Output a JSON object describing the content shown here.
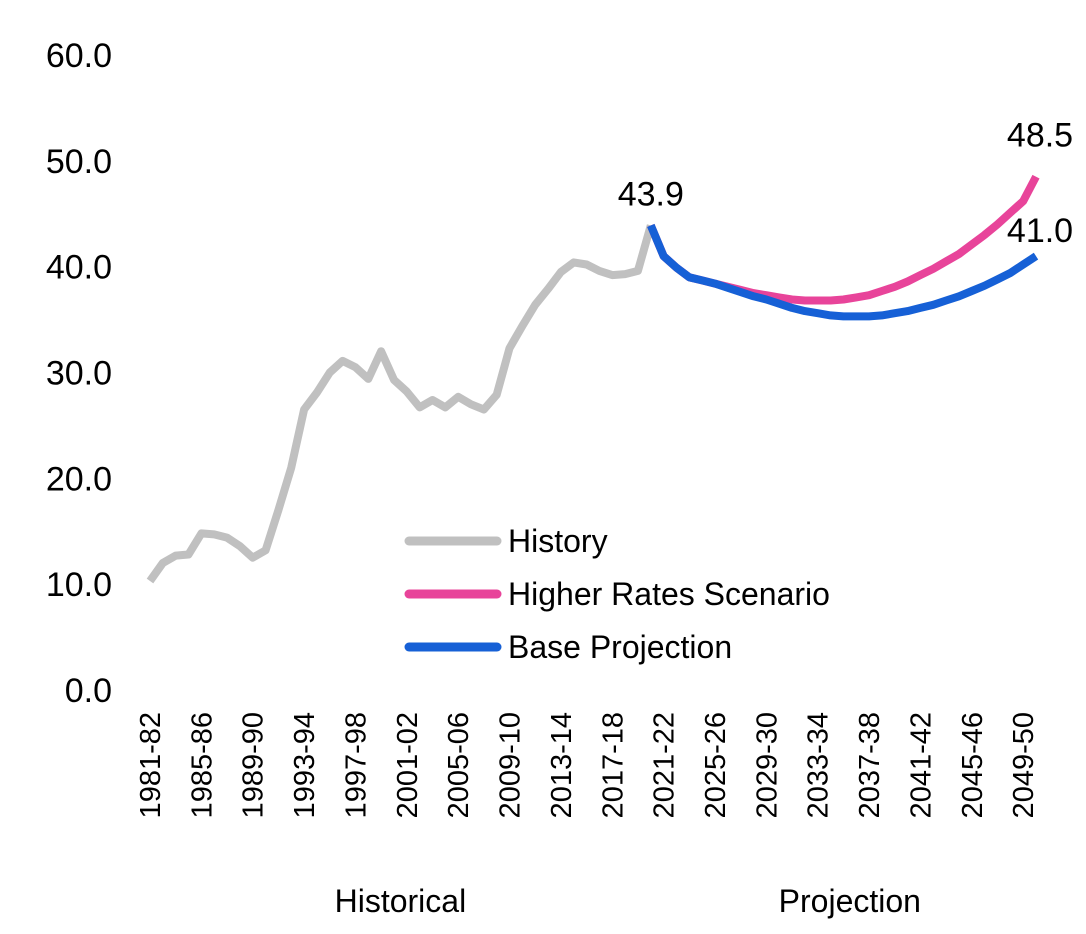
{
  "chart_data": {
    "type": "line",
    "title": "",
    "xlabel": "",
    "ylabel": "",
    "ylim": [
      0,
      60
    ],
    "y_ticks": [
      "0.0",
      "10.0",
      "20.0",
      "30.0",
      "40.0",
      "50.0",
      "60.0"
    ],
    "x_tick_labels": [
      "1981-82",
      "1985-86",
      "1989-90",
      "1993-94",
      "1997-98",
      "2001-02",
      "2005-06",
      "2009-10",
      "2013-14",
      "2017-18",
      "2021-22",
      "2025-26",
      "2029-30",
      "2033-34",
      "2037-38",
      "2041-42",
      "2045-46",
      "2049-50"
    ],
    "x_groups": [
      {
        "label": "Historical",
        "from": "1981-82",
        "to": "2020-21"
      },
      {
        "label": "Projection",
        "from": "2021-22",
        "to": "2050-51"
      }
    ],
    "grid": false,
    "legend_position": "center-bottom",
    "series": [
      {
        "name": "History",
        "color": "#C0C0C0",
        "x": [
          "1981-82",
          "1982-83",
          "1983-84",
          "1984-85",
          "1985-86",
          "1986-87",
          "1987-88",
          "1988-89",
          "1989-90",
          "1990-91",
          "1991-92",
          "1992-93",
          "1993-94",
          "1994-95",
          "1995-96",
          "1996-97",
          "1997-98",
          "1998-99",
          "1999-00",
          "2000-01",
          "2001-02",
          "2002-03",
          "2003-04",
          "2004-05",
          "2005-06",
          "2006-07",
          "2007-08",
          "2008-09",
          "2009-10",
          "2010-11",
          "2011-12",
          "2012-13",
          "2013-14",
          "2014-15",
          "2015-16",
          "2016-17",
          "2017-18",
          "2018-19",
          "2019-20",
          "2020-21"
        ],
        "values": [
          10.3,
          12.0,
          12.7,
          12.8,
          14.8,
          14.7,
          14.4,
          13.6,
          12.5,
          13.2,
          17.0,
          21.0,
          26.5,
          28.1,
          30.0,
          31.1,
          30.5,
          29.4,
          32.0,
          29.3,
          28.2,
          26.7,
          27.4,
          26.7,
          27.7,
          27.0,
          26.5,
          27.9,
          32.3,
          34.4,
          36.4,
          37.9,
          39.5,
          40.4,
          40.2,
          39.6,
          39.2,
          39.3,
          39.6,
          43.9
        ]
      },
      {
        "name": "Higher Rates Scenario",
        "color": "#E8449A",
        "x": [
          "2020-21",
          "2021-22",
          "2022-23",
          "2023-24",
          "2024-25",
          "2025-26",
          "2026-27",
          "2027-28",
          "2028-29",
          "2029-30",
          "2030-31",
          "2031-32",
          "2032-33",
          "2033-34",
          "2034-35",
          "2035-36",
          "2036-37",
          "2037-38",
          "2038-39",
          "2039-40",
          "2040-41",
          "2041-42",
          "2042-43",
          "2043-44",
          "2044-45",
          "2045-46",
          "2046-47",
          "2047-48",
          "2048-49",
          "2049-50",
          "2050-51"
        ],
        "values": [
          43.9,
          41.0,
          39.9,
          39.0,
          38.7,
          38.4,
          38.1,
          37.8,
          37.5,
          37.3,
          37.1,
          36.9,
          36.8,
          36.8,
          36.8,
          36.9,
          37.1,
          37.3,
          37.7,
          38.1,
          38.6,
          39.2,
          39.8,
          40.5,
          41.2,
          42.1,
          43.0,
          44.0,
          45.1,
          46.2,
          48.5
        ]
      },
      {
        "name": "Base Projection",
        "color": "#1660D6",
        "x": [
          "2020-21",
          "2021-22",
          "2022-23",
          "2023-24",
          "2024-25",
          "2025-26",
          "2026-27",
          "2027-28",
          "2028-29",
          "2029-30",
          "2030-31",
          "2031-32",
          "2032-33",
          "2033-34",
          "2034-35",
          "2035-36",
          "2036-37",
          "2037-38",
          "2038-39",
          "2039-40",
          "2040-41",
          "2041-42",
          "2042-43",
          "2043-44",
          "2044-45",
          "2045-46",
          "2046-47",
          "2047-48",
          "2048-49",
          "2049-50",
          "2050-51"
        ],
        "values": [
          43.9,
          41.0,
          39.9,
          39.0,
          38.7,
          38.4,
          38.0,
          37.6,
          37.2,
          36.9,
          36.5,
          36.1,
          35.8,
          35.6,
          35.4,
          35.3,
          35.3,
          35.3,
          35.4,
          35.6,
          35.8,
          36.1,
          36.4,
          36.8,
          37.2,
          37.7,
          38.2,
          38.8,
          39.4,
          40.2,
          41.0
        ]
      }
    ],
    "data_labels": [
      {
        "text": "43.9",
        "series": "History",
        "x": "2020-21",
        "value": 43.9
      },
      {
        "text": "48.5",
        "series": "Higher Rates Scenario",
        "x": "2050-51",
        "value": 48.5
      },
      {
        "text": "41.0",
        "series": "Base Projection",
        "x": "2050-51",
        "value": 41.0
      }
    ]
  }
}
